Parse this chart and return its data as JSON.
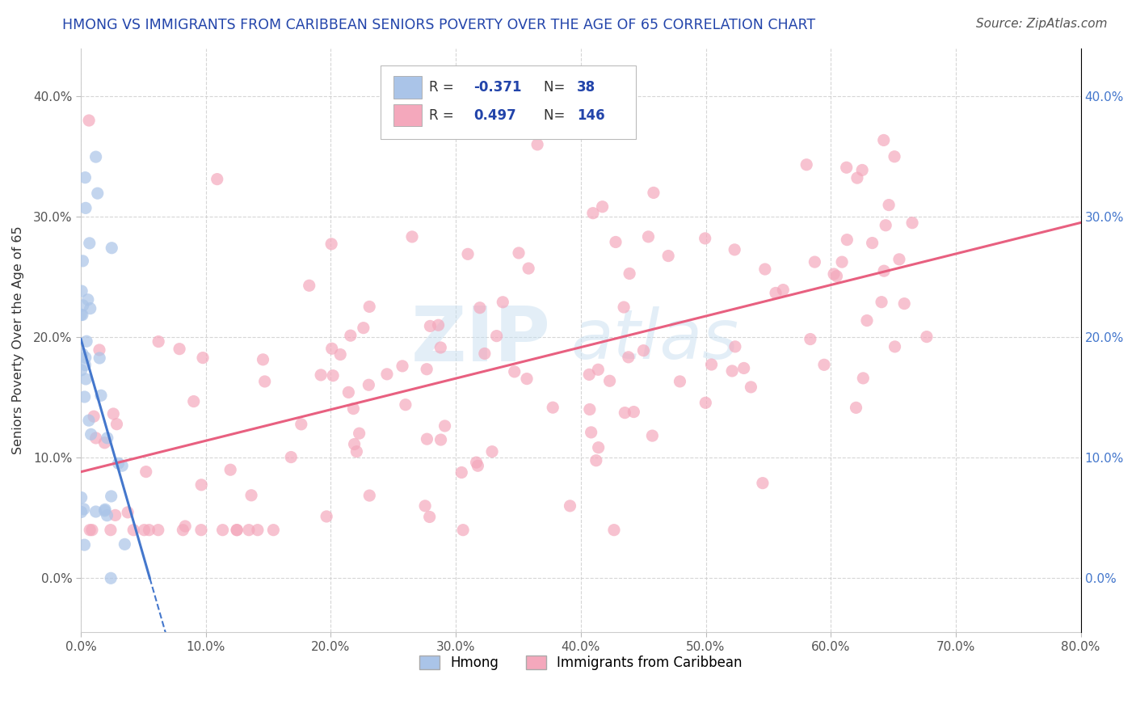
{
  "title": "HMONG VS IMMIGRANTS FROM CARIBBEAN SENIORS POVERTY OVER THE AGE OF 65 CORRELATION CHART",
  "source": "Source: ZipAtlas.com",
  "ylabel": "Seniors Poverty Over the Age of 65",
  "xlim": [
    0.0,
    0.8
  ],
  "ylim": [
    -0.045,
    0.44
  ],
  "xticks": [
    0.0,
    0.1,
    0.2,
    0.3,
    0.4,
    0.5,
    0.6,
    0.7,
    0.8
  ],
  "yticks": [
    0.0,
    0.1,
    0.2,
    0.3,
    0.4
  ],
  "xtick_labels": [
    "0.0%",
    "10.0%",
    "20.0%",
    "30.0%",
    "40.0%",
    "50.0%",
    "60.0%",
    "70.0%",
    "80.0%"
  ],
  "ytick_labels": [
    "0.0%",
    "10.0%",
    "20.0%",
    "30.0%",
    "40.0%"
  ],
  "hmong_R": -0.371,
  "hmong_N": 38,
  "caribbean_R": 0.497,
  "caribbean_N": 146,
  "hmong_color": "#aac4e8",
  "caribbean_color": "#f4a8bc",
  "hmong_line_color": "#4477cc",
  "caribbean_line_color": "#e86080",
  "watermark_zip": "ZIP",
  "watermark_atlas": "atlas",
  "background_color": "#ffffff",
  "grid_color": "#cccccc",
  "title_color": "#2244aa",
  "legend_text_color": "#2244aa",
  "right_axis_color": "#4477cc",
  "source_color": "#555555"
}
